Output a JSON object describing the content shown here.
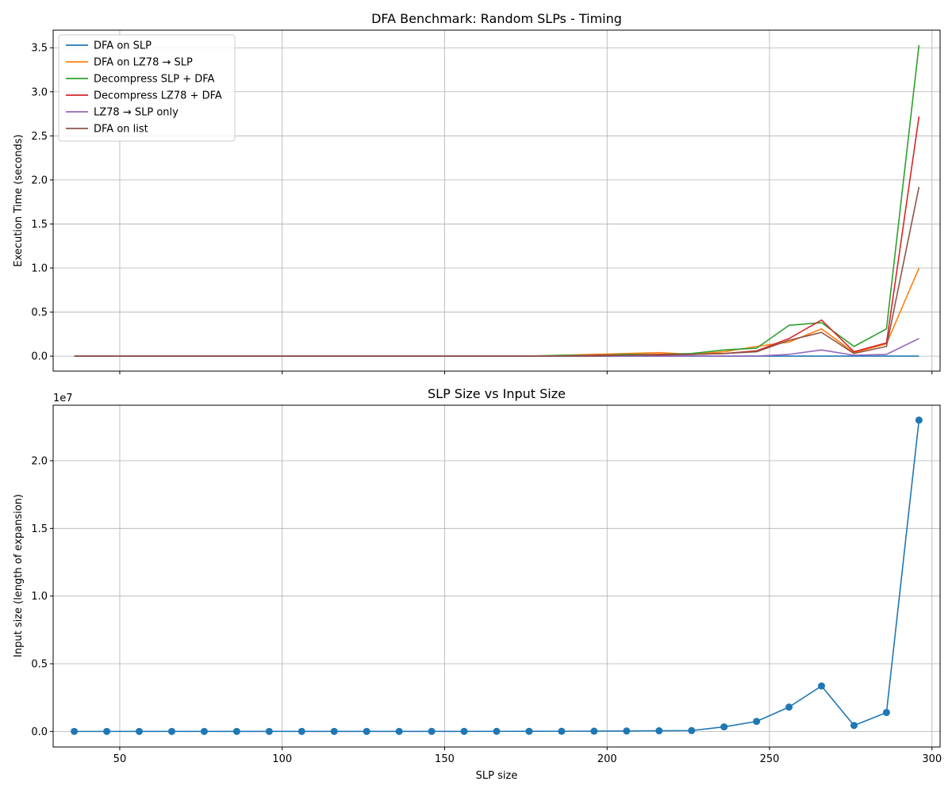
{
  "chart_data": [
    {
      "type": "line",
      "title": "DFA Benchmark: Random SLPs - Timing",
      "xlabel": "",
      "ylabel": "Execution Time (seconds)",
      "xlim": [
        29.5,
        302.5
      ],
      "ylim": [
        -0.17,
        3.7
      ],
      "x_ticks": [
        50,
        100,
        150,
        200,
        250,
        300
      ],
      "y_ticks": [
        0.0,
        0.5,
        1.0,
        1.5,
        2.0,
        2.5,
        3.0,
        3.5
      ],
      "x_tick_labels_visible": false,
      "grid": true,
      "legend_position": "top-left",
      "x": [
        36,
        46,
        56,
        66,
        76,
        86,
        96,
        106,
        116,
        126,
        136,
        146,
        156,
        166,
        176,
        186,
        196,
        206,
        216,
        226,
        236,
        246,
        256,
        266,
        276,
        286,
        296
      ],
      "series": [
        {
          "name": "DFA on SLP",
          "color": "#1f77b4",
          "values": [
            0,
            0,
            0,
            0,
            0,
            0,
            0,
            0,
            0,
            0,
            0,
            0,
            0,
            0,
            0,
            0,
            0,
            0,
            0,
            0,
            0,
            0,
            0,
            0,
            0,
            0,
            0
          ]
        },
        {
          "name": "DFA on LZ78 → SLP",
          "color": "#ff7f0e",
          "values": [
            0,
            0,
            0,
            0,
            0,
            0,
            0,
            0,
            0,
            0,
            0,
            0,
            0,
            0,
            0,
            0.01,
            0.02,
            0.03,
            0.04,
            0.02,
            0.05,
            0.11,
            0.16,
            0.31,
            0.04,
            0.14,
            1.0
          ]
        },
        {
          "name": "Decompress SLP + DFA",
          "color": "#2ca02c",
          "values": [
            0,
            0,
            0,
            0,
            0,
            0,
            0,
            0,
            0,
            0,
            0,
            0,
            0,
            0,
            0,
            0.01,
            0.01,
            0.02,
            0.02,
            0.03,
            0.07,
            0.09,
            0.35,
            0.38,
            0.11,
            0.31,
            3.53
          ]
        },
        {
          "name": "Decompress LZ78 + DFA",
          "color": "#d62728",
          "values": [
            0,
            0,
            0,
            0,
            0,
            0,
            0,
            0,
            0,
            0,
            0,
            0,
            0,
            0,
            0,
            0,
            0.01,
            0.01,
            0.02,
            0.02,
            0.03,
            0.06,
            0.2,
            0.41,
            0.05,
            0.15,
            2.72
          ]
        },
        {
          "name": "LZ78 → SLP only",
          "color": "#9467bd",
          "values": [
            0,
            0,
            0,
            0,
            0,
            0,
            0,
            0,
            0,
            0,
            0,
            0,
            0,
            0,
            0,
            0,
            0,
            0,
            0,
            0,
            0,
            0,
            0.02,
            0.07,
            0.01,
            0.02,
            0.2
          ]
        },
        {
          "name": "DFA on list",
          "color": "#8c564b",
          "values": [
            0,
            0,
            0,
            0,
            0,
            0,
            0,
            0,
            0,
            0,
            0,
            0,
            0,
            0,
            0,
            0,
            0,
            0.01,
            0.01,
            0.02,
            0.03,
            0.05,
            0.18,
            0.27,
            0.03,
            0.11,
            1.92
          ]
        }
      ]
    },
    {
      "type": "line",
      "title": "SLP Size vs Input Size",
      "xlabel": "SLP size",
      "ylabel": "Input size (length of expansion)",
      "y_offset_label": "1e7",
      "xlim": [
        29.5,
        302.5
      ],
      "ylim": [
        -0.115,
        2.41
      ],
      "x_ticks": [
        50,
        100,
        150,
        200,
        250,
        300
      ],
      "y_ticks": [
        0.0,
        0.5,
        1.0,
        1.5,
        2.0
      ],
      "y_tick_labels": [
        "0.0",
        "0.5",
        "1.0",
        "1.5",
        "2.0"
      ],
      "grid": true,
      "markers": true,
      "x": [
        36,
        46,
        56,
        66,
        76,
        86,
        96,
        106,
        116,
        126,
        136,
        146,
        156,
        166,
        176,
        186,
        196,
        206,
        216,
        226,
        236,
        246,
        256,
        266,
        276,
        286,
        296
      ],
      "series": [
        {
          "color": "#1f77b4",
          "values": [
            2e-05,
            3e-05,
            4e-05,
            5e-05,
            6e-05,
            8e-05,
            0.0001,
            0.00012,
            0.00015,
            0.0002,
            0.0003,
            0.0004,
            0.0005,
            0.0007,
            0.001,
            0.0014,
            0.002,
            0.0035,
            0.005,
            0.0065,
            0.034,
            0.074,
            0.18,
            0.336,
            0.044,
            0.14,
            2.3
          ]
        }
      ]
    }
  ]
}
